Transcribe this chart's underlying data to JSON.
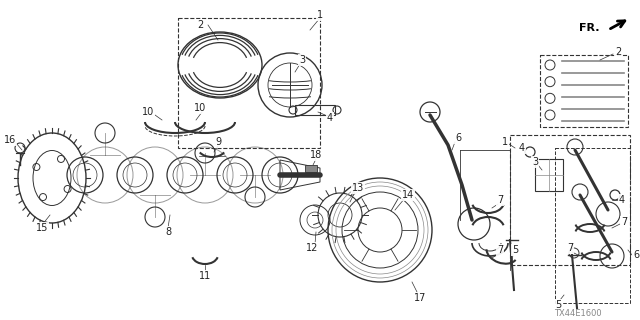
{
  "background_color": "#ffffff",
  "figsize": [
    6.4,
    3.2
  ],
  "dpi": 100,
  "diagram_code": "TX44E1600",
  "text_color": "#222222",
  "gray": "#555555",
  "light_gray": "#888888",
  "line_color": "#333333"
}
